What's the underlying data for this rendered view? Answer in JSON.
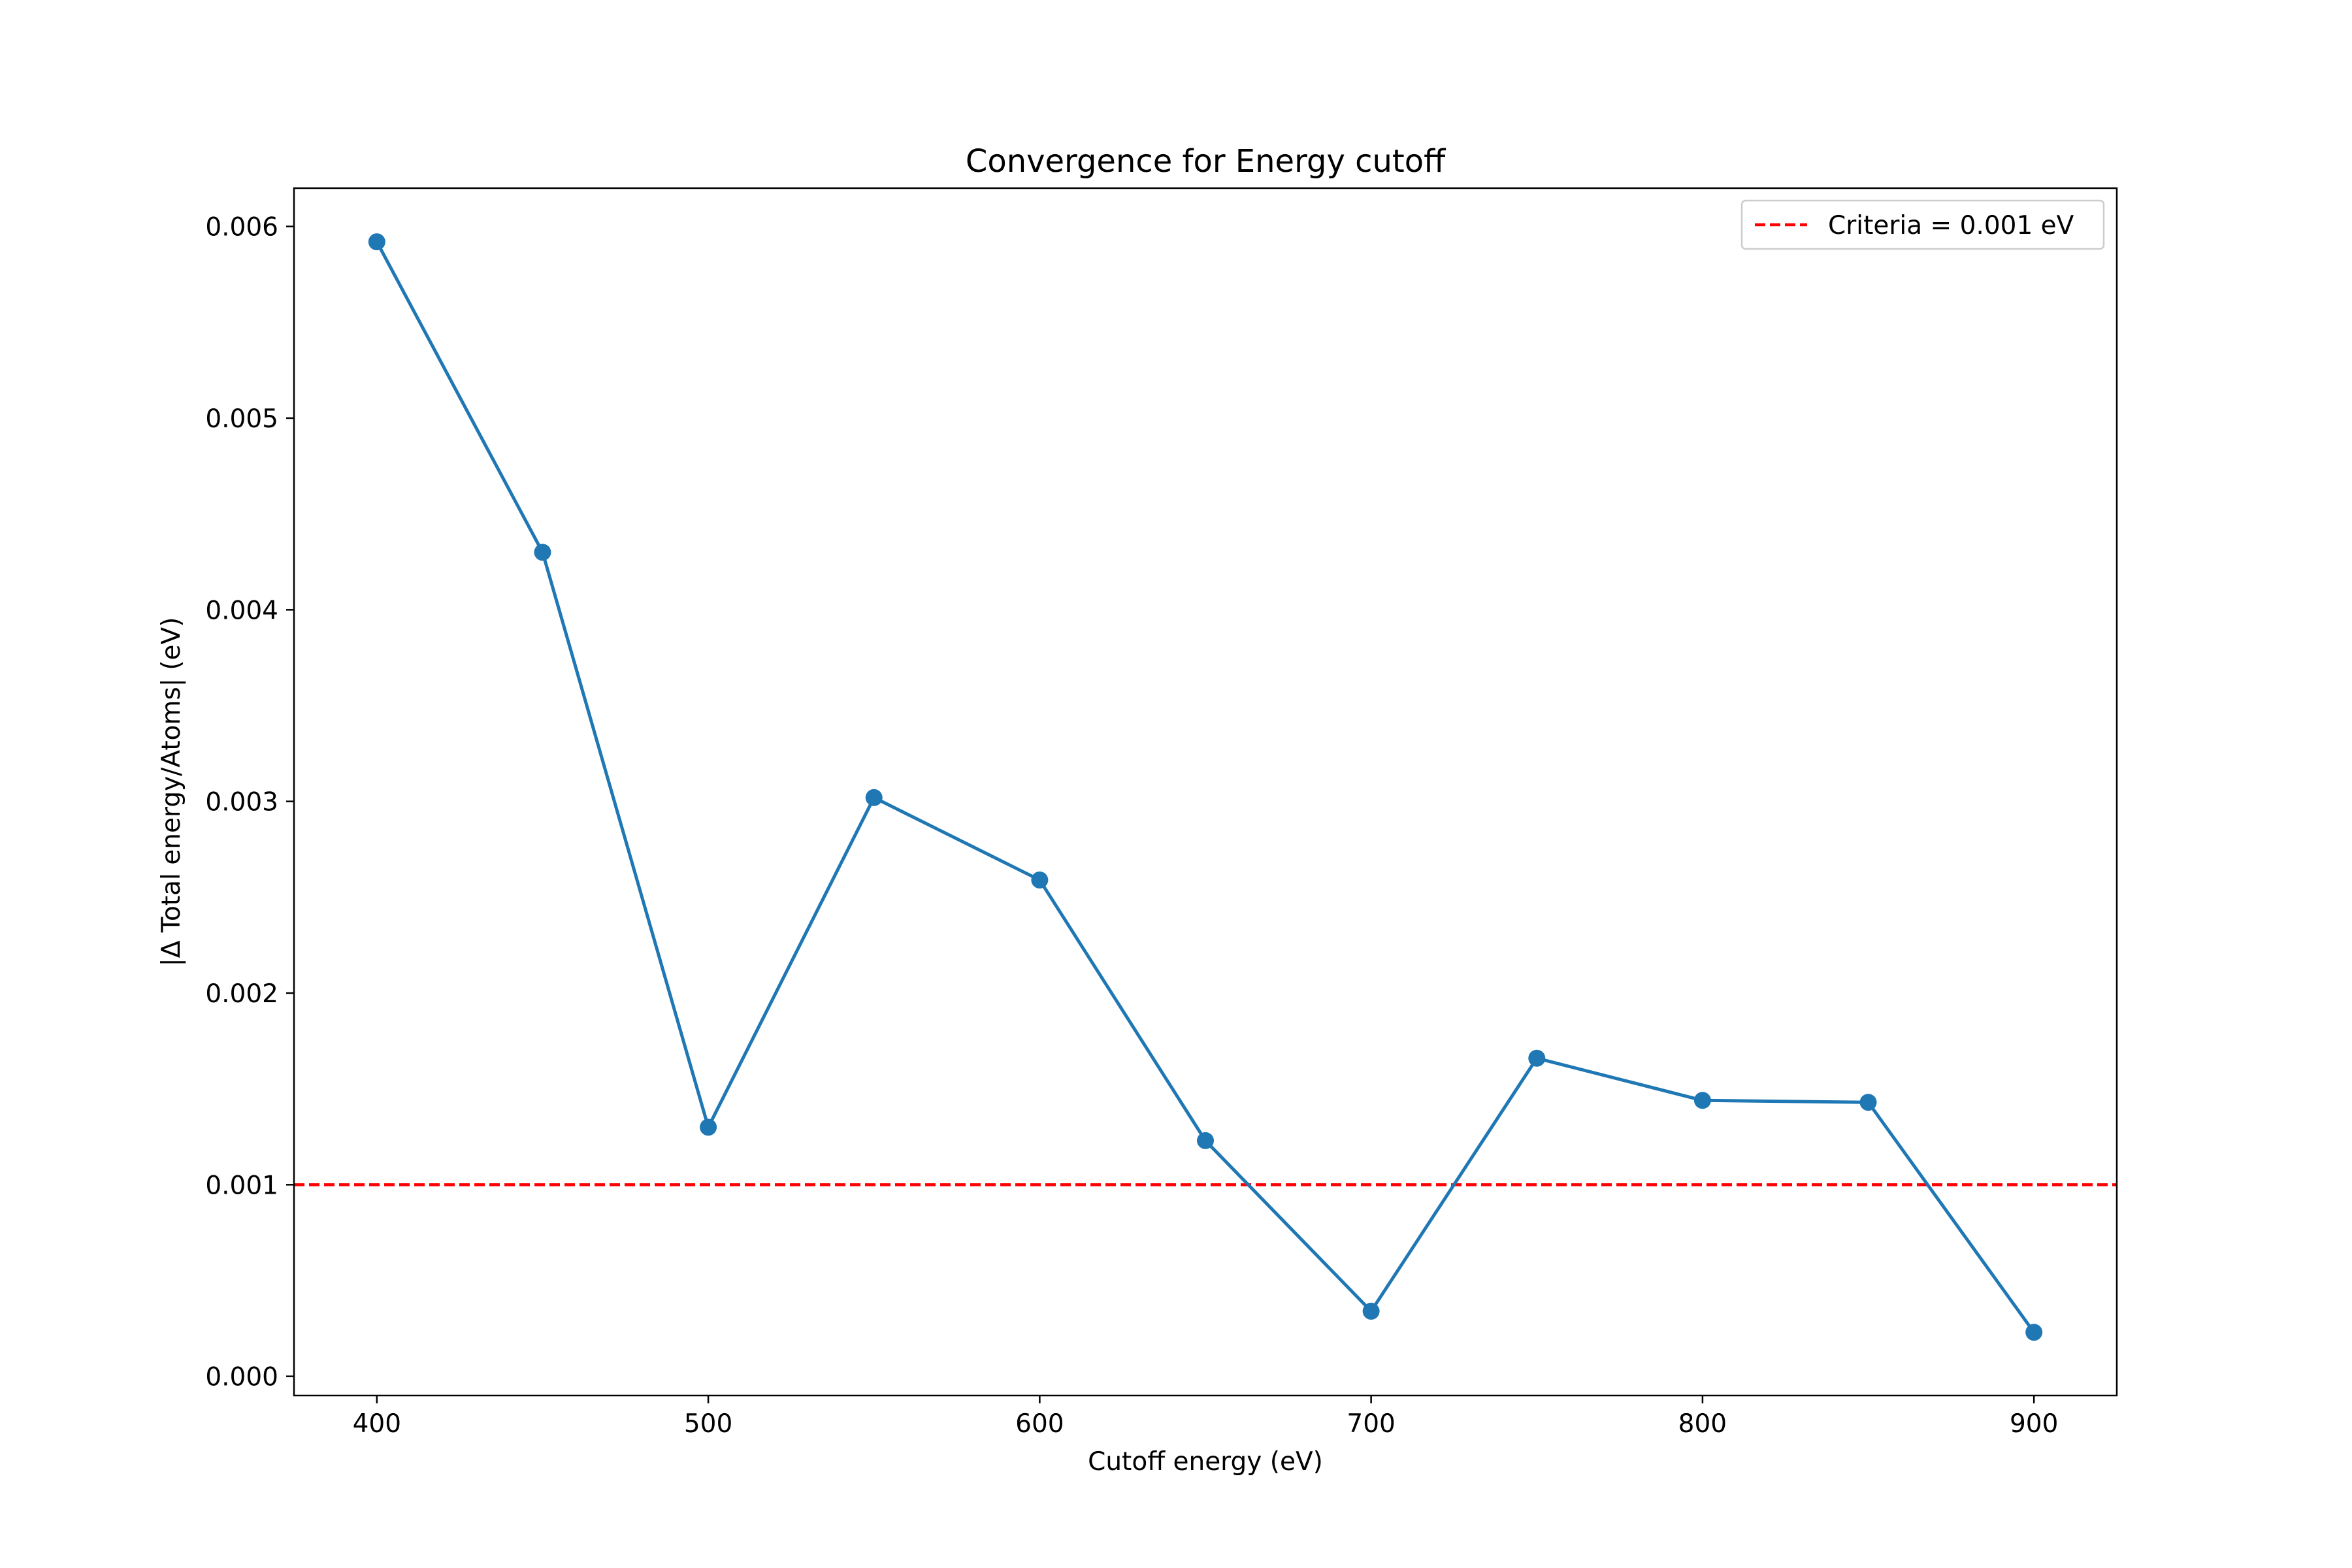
{
  "chart_data": {
    "type": "line",
    "title": "Convergence for Energy cutoff",
    "xlabel": "Cutoff energy (eV)",
    "ylabel": "|Δ Total energy/Atoms| (eV)",
    "xlim": [
      375,
      925
    ],
    "ylim": [
      -0.0001,
      0.0062
    ],
    "xticks": [
      400,
      500,
      600,
      700,
      800,
      900
    ],
    "xtick_labels": [
      "400",
      "500",
      "600",
      "700",
      "800",
      "900"
    ],
    "yticks": [
      0.0,
      0.001,
      0.002,
      0.003,
      0.004,
      0.005,
      0.006
    ],
    "ytick_labels": [
      "0.000",
      "0.001",
      "0.002",
      "0.003",
      "0.004",
      "0.005",
      "0.006"
    ],
    "grid": false,
    "legend_position": "top-right",
    "series": [
      {
        "color": "#1f77b4",
        "marker": "circle",
        "x": [
          400,
          450,
          500,
          550,
          600,
          650,
          700,
          750,
          800,
          850,
          900
        ],
        "y": [
          0.00592,
          0.0043,
          0.0013,
          0.00302,
          0.00259,
          0.00123,
          0.00034,
          0.00166,
          0.00144,
          0.00143,
          0.00023
        ]
      }
    ],
    "reference_lines": [
      {
        "name": "Criteria = 0.001 eV",
        "orientation": "horizontal",
        "y": 0.001,
        "color": "#ff0000",
        "style": "dashed"
      }
    ]
  }
}
